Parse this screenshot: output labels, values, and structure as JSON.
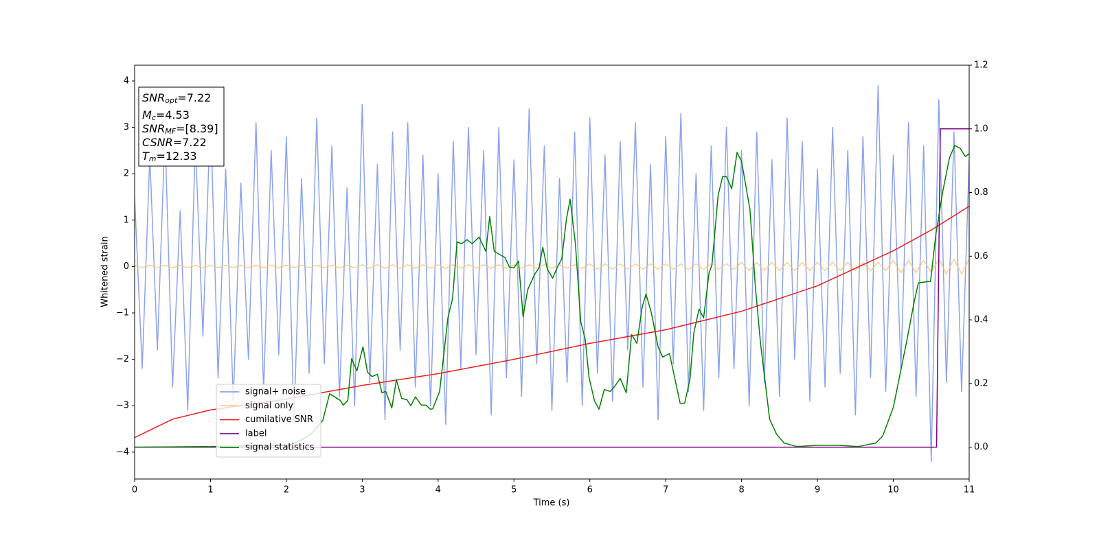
{
  "chart_data": {
    "type": "line",
    "xlabel": "Time (s)",
    "ylabel": "Whitened strain",
    "xlim": [
      0,
      11
    ],
    "ylim": [
      -4.58,
      4.34
    ],
    "y2lim": [
      -0.1,
      1.2
    ],
    "xticks": [
      0,
      1,
      2,
      3,
      4,
      5,
      6,
      7,
      8,
      9,
      10,
      11
    ],
    "yticks": [
      {
        "value": -4,
        "label": "−4"
      },
      {
        "value": -3,
        "label": "−3"
      },
      {
        "value": -2,
        "label": "−2"
      },
      {
        "value": -1,
        "label": "−1"
      },
      0,
      1,
      2,
      3,
      4
    ],
    "y2ticks": [
      {
        "value": 0,
        "label": "0.0"
      },
      {
        "value": 0.2,
        "label": "0.2"
      },
      {
        "value": 0.4,
        "label": "0.4"
      },
      {
        "value": 0.6,
        "label": "0.6"
      },
      {
        "value": 0.8,
        "label": "0.8"
      },
      {
        "value": 1,
        "label": "1.0"
      },
      {
        "value": 1.2,
        "label": "1.2"
      }
    ],
    "legend": "lower left",
    "annotation": [
      {
        "base": "SNR",
        "sub": "opt",
        "text": "=7.22"
      },
      {
        "base": "M",
        "sub": "c",
        "text": "=4.53"
      },
      {
        "base": "SNR",
        "sub": "MF",
        "text": "=[8.39]"
      },
      {
        "base": "CSNR",
        "sub": null,
        "text": "=7.22"
      },
      {
        "base": "T",
        "sub": "m",
        "text": "=12.33"
      }
    ],
    "x": [
      0,
      0.1,
      0.2,
      0.3,
      0.4,
      0.5,
      0.6,
      0.7,
      0.8,
      0.9,
      1,
      1.1,
      1.2,
      1.3,
      1.4,
      1.5,
      1.6,
      1.7,
      1.8,
      1.9,
      2,
      2.1,
      2.2,
      2.3,
      2.4,
      2.5,
      2.6,
      2.7,
      2.8,
      2.9,
      3,
      3.1,
      3.2,
      3.3,
      3.4,
      3.5,
      3.6,
      3.7,
      3.8,
      3.9,
      4,
      4.1,
      4.2,
      4.3,
      4.4,
      4.5,
      4.6,
      4.7,
      4.8,
      4.9,
      5,
      5.1,
      5.2,
      5.3,
      5.4,
      5.5,
      5.6,
      5.7,
      5.8,
      5.9,
      6,
      6.1,
      6.2,
      6.3,
      6.4,
      6.5,
      6.6,
      6.7,
      6.8,
      6.9,
      7,
      7.1,
      7.2,
      7.3,
      7.4,
      7.5,
      7.6,
      7.7,
      7.8,
      7.9,
      8,
      8.1,
      8.2,
      8.3,
      8.4,
      8.5,
      8.6,
      8.7,
      8.8,
      8.9,
      9,
      9.1,
      9.2,
      9.3,
      9.4,
      9.5,
      9.6,
      9.7,
      9.8,
      9.9,
      10,
      10.1,
      10.2,
      10.3,
      10.4,
      10.5,
      10.6,
      10.7,
      10.8,
      10.9,
      11
    ],
    "series": [
      {
        "name": "signal+ noise",
        "color": "#7893e8",
        "values": [
          1.5,
          -2.2,
          2.4,
          -1.8,
          2.9,
          -2.6,
          1.2,
          -3.1,
          2.7,
          -1.5,
          3.3,
          -2.4,
          2.1,
          -2.9,
          1.8,
          -2.0,
          3.1,
          -2.7,
          2.5,
          -1.9,
          2.8,
          -3.4,
          1.9,
          -2.3,
          3.2,
          -2.1,
          2.6,
          -2.8,
          1.7,
          -3.0,
          3.5,
          -2.5,
          2.2,
          -3.3,
          2.9,
          -1.8,
          3.1,
          -2.6,
          2.4,
          -3.0,
          2.0,
          -3.4,
          2.7,
          -2.2,
          3.0,
          -1.9,
          2.5,
          -3.2,
          3.0,
          -2.4,
          2.3,
          -2.8,
          3.4,
          -2.1,
          2.6,
          -3.1,
          1.9,
          -2.5,
          2.9,
          -3.0,
          3.2,
          -2.3,
          2.4,
          -2.9,
          2.7,
          -1.8,
          3.1,
          -2.6,
          2.2,
          -3.3,
          2.8,
          -2.1,
          3.3,
          -2.7,
          2.0,
          -3.1,
          2.6,
          -2.4,
          3.0,
          -2.2,
          2.5,
          -3.0,
          2.9,
          -2.5,
          2.3,
          -2.8,
          3.2,
          -2.0,
          2.7,
          -2.9,
          2.1,
          -2.6,
          3.0,
          -2.3,
          2.5,
          -3.2,
          2.8,
          -2.4,
          3.9,
          -2.7,
          2.4,
          -2.2,
          3.1,
          -2.8,
          2.6,
          -4.2,
          3.6,
          -2.5,
          2.9,
          -2.7,
          2.3
        ]
      },
      {
        "name": "signal only",
        "color": "#f8c47c",
        "values": [
          0.03,
          -0.03,
          0.03,
          -0.03,
          0.03,
          -0.03,
          0.03,
          -0.03,
          0.03,
          -0.03,
          0.03,
          -0.03,
          0.03,
          -0.03,
          0.03,
          -0.03,
          0.03,
          -0.03,
          0.03,
          -0.03,
          0.03,
          -0.03,
          0.03,
          -0.03,
          0.03,
          -0.03,
          0.03,
          -0.03,
          0.03,
          -0.03,
          0.04,
          -0.04,
          0.04,
          -0.04,
          0.04,
          -0.04,
          0.04,
          -0.04,
          0.04,
          -0.04,
          0.04,
          -0.04,
          0.04,
          -0.04,
          0.04,
          -0.04,
          0.04,
          -0.04,
          0.04,
          -0.04,
          0.04,
          -0.04,
          0.04,
          -0.04,
          0.04,
          -0.04,
          0.04,
          -0.04,
          0.04,
          -0.04,
          0.06,
          -0.06,
          0.06,
          -0.06,
          0.06,
          -0.06,
          0.06,
          -0.06,
          0.06,
          -0.06,
          0.06,
          -0.06,
          0.06,
          -0.06,
          0.06,
          -0.06,
          0.06,
          -0.06,
          0.06,
          -0.06,
          0.09,
          -0.09,
          0.09,
          -0.09,
          0.09,
          -0.09,
          0.09,
          -0.09,
          0.09,
          -0.09,
          0.09,
          -0.09,
          0.09,
          -0.09,
          0.09,
          -0.09,
          0.09,
          -0.09,
          0.09,
          -0.09,
          0.13,
          -0.13,
          0.13,
          -0.13,
          0.13,
          -0.13,
          0.16,
          -0.16,
          0.16,
          -0.16,
          0.16
        ]
      },
      {
        "name": "cumilative SNR",
        "color": "#ee1c1c",
        "axis": "y2",
        "x": [
          0,
          0.5,
          1,
          2,
          3,
          4,
          5,
          6,
          7,
          8,
          9,
          10,
          10.5,
          11
        ],
        "values": [
          0.03,
          0.088,
          0.117,
          0.151,
          0.194,
          0.231,
          0.276,
          0.326,
          0.369,
          0.427,
          0.507,
          0.617,
          0.682,
          0.757
        ]
      },
      {
        "name": "label",
        "color": "#800080",
        "axis": "y2",
        "x": [
          0,
          10.57,
          10.62,
          11
        ],
        "values": [
          0,
          0,
          1,
          1
        ]
      },
      {
        "name": "signal statistics",
        "color": "#008000",
        "axis": "y2",
        "x": [
          0,
          0.94,
          2.03,
          2.21,
          2.34,
          2.48,
          2.57,
          2.71,
          2.75,
          2.81,
          2.86,
          2.93,
          3.01,
          3.07,
          3.13,
          3.2,
          3.26,
          3.31,
          3.39,
          3.45,
          3.52,
          3.59,
          3.64,
          3.7,
          3.78,
          3.84,
          3.9,
          3.93,
          4.02,
          4.13,
          4.19,
          4.25,
          4.31,
          4.38,
          4.45,
          4.54,
          4.63,
          4.68,
          4.74,
          4.88,
          4.94,
          5.0,
          5.06,
          5.12,
          5.18,
          5.27,
          5.33,
          5.38,
          5.44,
          5.51,
          5.58,
          5.63,
          5.69,
          5.74,
          5.81,
          5.88,
          5.94,
          5.99,
          6.06,
          6.12,
          6.19,
          6.27,
          6.33,
          6.4,
          6.48,
          6.55,
          6.62,
          6.69,
          6.74,
          6.81,
          6.9,
          6.96,
          7.05,
          7.19,
          7.25,
          7.32,
          7.37,
          7.44,
          7.5,
          7.57,
          7.61,
          7.69,
          7.75,
          7.8,
          7.87,
          7.94,
          8.0,
          8.11,
          8.18,
          8.25,
          8.37,
          8.46,
          8.56,
          8.73,
          9.0,
          9.27,
          9.54,
          9.77,
          9.86,
          10.0,
          10.18,
          10.27,
          10.33,
          10.45,
          10.49,
          10.56,
          10.65,
          10.74,
          10.81,
          10.88,
          10.95,
          11
        ],
        "values": [
          0,
          0.002,
          0.006,
          0.024,
          0.045,
          0.084,
          0.168,
          0.147,
          0.132,
          0.147,
          0.278,
          0.24,
          0.315,
          0.235,
          0.222,
          0.229,
          0.171,
          0.175,
          0.123,
          0.212,
          0.153,
          0.149,
          0.13,
          0.158,
          0.132,
          0.132,
          0.119,
          0.121,
          0.175,
          0.408,
          0.466,
          0.645,
          0.639,
          0.652,
          0.639,
          0.66,
          0.615,
          0.725,
          0.615,
          0.596,
          0.566,
          0.563,
          0.585,
          0.41,
          0.494,
          0.542,
          0.563,
          0.628,
          0.559,
          0.531,
          0.57,
          0.591,
          0.714,
          0.779,
          0.639,
          0.395,
          0.337,
          0.218,
          0.147,
          0.119,
          0.181,
          0.175,
          0.192,
          0.216,
          0.171,
          0.354,
          0.326,
          0.44,
          0.481,
          0.423,
          0.315,
          0.283,
          0.294,
          0.138,
          0.138,
          0.214,
          0.358,
          0.434,
          0.406,
          0.546,
          0.574,
          0.79,
          0.85,
          0.85,
          0.812,
          0.926,
          0.898,
          0.747,
          0.509,
          0.326,
          0.088,
          0.041,
          0.013,
          0.002,
          0.006,
          0.006,
          0.002,
          0.013,
          0.035,
          0.125,
          0.337,
          0.451,
          0.516,
          0.52,
          0.52,
          0.667,
          0.801,
          0.909,
          0.948,
          0.939,
          0.913,
          0.922
        ]
      }
    ]
  }
}
